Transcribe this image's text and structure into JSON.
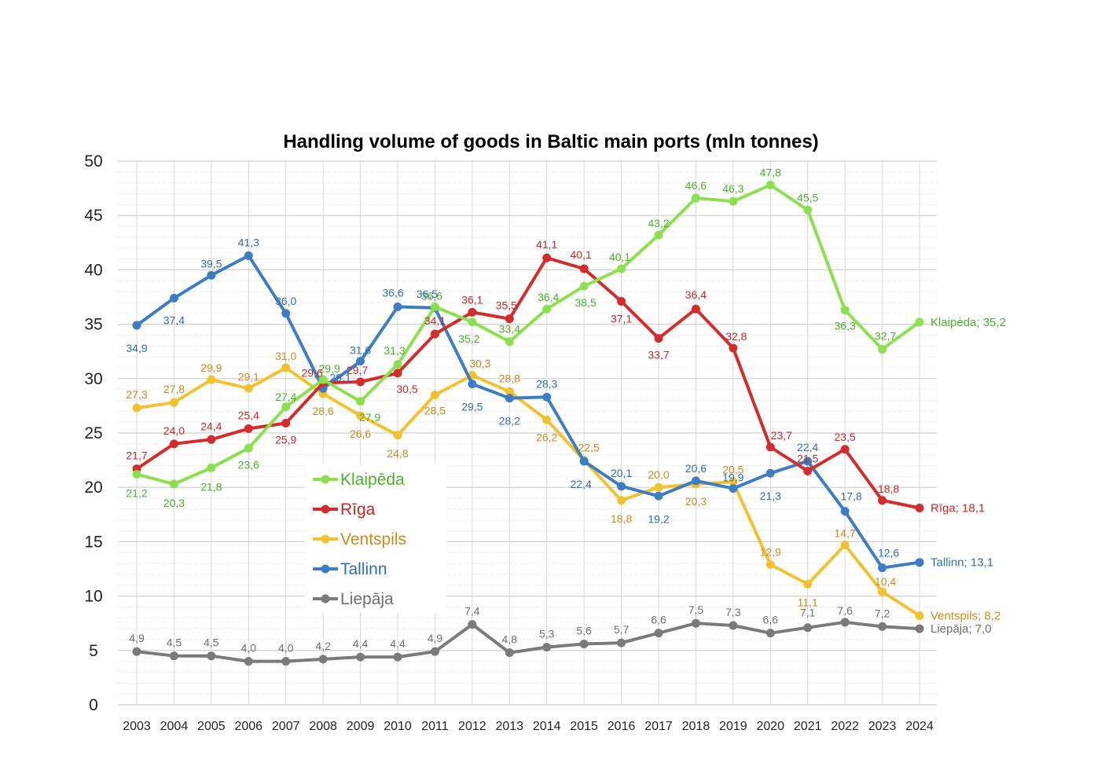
{
  "chart_data": {
    "type": "line",
    "title": "Handling volume of goods in Baltic main ports (mln tonnes)",
    "xlabel": "",
    "ylabel": "",
    "x": [
      "2003",
      "2004",
      "2005",
      "2006",
      "2007",
      "2008",
      "2009",
      "2010",
      "2011",
      "2012",
      "2013",
      "2014",
      "2015",
      "2016",
      "2017",
      "2018",
      "2019",
      "2020",
      "2021",
      "2022",
      "2023",
      "2024"
    ],
    "ylim": [
      0,
      50
    ],
    "yticks": [
      "0",
      "5",
      "10",
      "15",
      "20",
      "25",
      "30",
      "35",
      "40",
      "45",
      "50"
    ],
    "grid": true,
    "legend_position": "center-left",
    "series": [
      {
        "name": "Klaipēda",
        "color": "#8BE04E",
        "label_color": "#4CAF2A",
        "values": [
          21.2,
          20.3,
          21.8,
          23.6,
          27.4,
          29.9,
          27.9,
          31.3,
          36.6,
          35.2,
          33.4,
          36.4,
          38.5,
          40.1,
          43.2,
          46.6,
          46.3,
          47.8,
          45.5,
          36.3,
          32.7,
          35.2
        ],
        "labels": [
          "21,2",
          "20,3",
          "21,8",
          "23,6",
          "27,4",
          "29,9",
          "27,9",
          "31,3",
          "36,6",
          "35,2",
          "33,4",
          "36,4",
          "38,5",
          "40,1",
          "43,2",
          "46,6",
          "46,3",
          "47,8",
          "45,5",
          "36,3",
          "32,7",
          ""
        ],
        "end_label": "Klaipėda; 35,2"
      },
      {
        "name": "Rīga",
        "color": "#D42B2B",
        "label_color": "#C62828",
        "values": [
          21.7,
          24.0,
          24.4,
          25.4,
          25.9,
          29.6,
          29.7,
          30.5,
          34.1,
          36.1,
          35.5,
          41.1,
          40.1,
          37.1,
          33.7,
          36.4,
          32.8,
          23.7,
          21.5,
          23.5,
          18.8,
          18.1
        ],
        "labels": [
          "21,7",
          "24,0",
          "24,4",
          "25,4",
          "25,9",
          "29,6",
          "29,7",
          "30,5",
          "34,1",
          "36,1",
          "35,5",
          "41,1",
          "40,1",
          "37,1",
          "33,7",
          "36,4",
          "32,8",
          "23,7",
          "21,5",
          "23,5",
          "18,8",
          ""
        ],
        "end_label": "Rīga; 18,1"
      },
      {
        "name": "Ventspils",
        "color": "#F2C12E",
        "label_color": "#C98A1B",
        "values": [
          27.3,
          27.8,
          29.9,
          29.1,
          31.0,
          28.6,
          26.6,
          24.8,
          28.5,
          30.3,
          28.8,
          26.2,
          22.5,
          18.8,
          20.0,
          20.3,
          20.5,
          12.9,
          11.1,
          14.7,
          10.4,
          8.2
        ],
        "labels": [
          "27,3",
          "27,8",
          "29,9",
          "29,1",
          "31,0",
          "28,6",
          "26,6",
          "24,8",
          "28,5",
          "30,3",
          "28,8",
          "26,2",
          "22,5",
          "18,8",
          "20,0",
          "20,3",
          "20,5",
          "12,9",
          "11,1",
          "14,7",
          "10,4",
          ""
        ],
        "end_label": "Ventspils; 8,2"
      },
      {
        "name": "Tallinn",
        "color": "#3C7DC4",
        "label_color": "#2E6DB0",
        "values": [
          34.9,
          37.4,
          39.5,
          41.3,
          36.0,
          29.1,
          31.6,
          36.6,
          36.5,
          29.5,
          28.2,
          28.3,
          22.4,
          20.1,
          19.2,
          20.6,
          19.9,
          21.3,
          22.4,
          17.8,
          12.6,
          13.1
        ],
        "labels": [
          "34,9",
          "37,4",
          "39,5",
          "41,3",
          "36,0",
          "29,1",
          "31,6",
          "36,6",
          "36,5",
          "29,5",
          "28,2",
          "28,3",
          "22,4",
          "20,1",
          "19,2",
          "20,6",
          "19,9",
          "21,3",
          "22,4",
          "17,8",
          "12,6",
          ""
        ],
        "end_label": "Tallinn; 13,1"
      },
      {
        "name": "Liepāja",
        "color": "#7A7A7A",
        "label_color": "#6E6E6E",
        "values": [
          4.9,
          4.5,
          4.5,
          4.0,
          4.0,
          4.2,
          4.4,
          4.4,
          4.9,
          7.4,
          4.8,
          5.3,
          5.6,
          5.7,
          6.6,
          7.5,
          7.3,
          6.6,
          7.1,
          7.6,
          7.2,
          7.0
        ],
        "labels": [
          "4,9",
          "4,5",
          "4,5",
          "4,0",
          "4,0",
          "4,2",
          "4,4",
          "4,4",
          "4,9",
          "7,4",
          "4,8",
          "5,3",
          "5,6",
          "5,7",
          "6,6",
          "7,5",
          "7,3",
          "6,6",
          "7,1",
          "7,6",
          "7,2",
          ""
        ],
        "end_label": "Liepāja; 7,0"
      }
    ]
  }
}
